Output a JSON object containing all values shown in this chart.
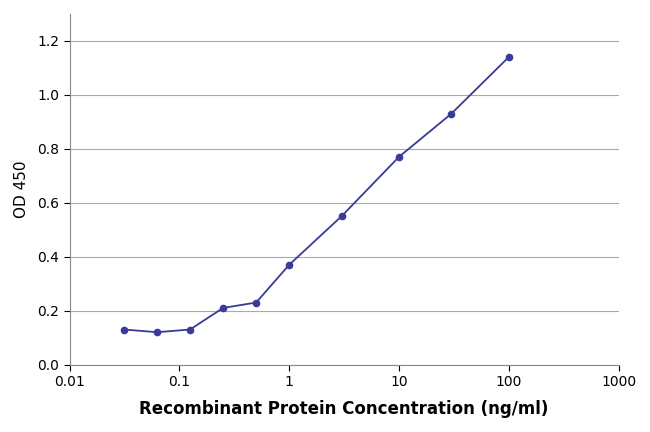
{
  "x_data": [
    0.0313,
    0.0625,
    0.125,
    0.25,
    0.5,
    1.0,
    3.0,
    10.0,
    30.0,
    100.0
  ],
  "y_data": [
    0.13,
    0.12,
    0.13,
    0.21,
    0.23,
    0.37,
    0.55,
    0.77,
    0.93,
    1.14
  ],
  "line_color": "#3a3a99",
  "marker_color": "#3a3a99",
  "marker_size": 4.5,
  "line_width": 1.3,
  "xlabel": "Recombinant Protein Concentration (ng/ml)",
  "ylabel": "OD 450",
  "ylim": [
    0,
    1.3
  ],
  "yticks": [
    0,
    0.2,
    0.4,
    0.6,
    0.8,
    1.0,
    1.2
  ],
  "xtick_locs": [
    0.01,
    0.1,
    1,
    10,
    100,
    1000
  ],
  "xtick_labels": [
    "0.01",
    "0.1",
    "1",
    "10",
    "100",
    "1000"
  ],
  "grid_color": "#aaaaaa",
  "plot_bg_color": "#ffffff",
  "figure_bg_color": "#ffffff",
  "xlabel_fontsize": 12,
  "ylabel_fontsize": 11,
  "tick_fontsize": 10,
  "xlabel_color": "#000000",
  "ylabel_color": "#000000",
  "tick_color": "#000000"
}
